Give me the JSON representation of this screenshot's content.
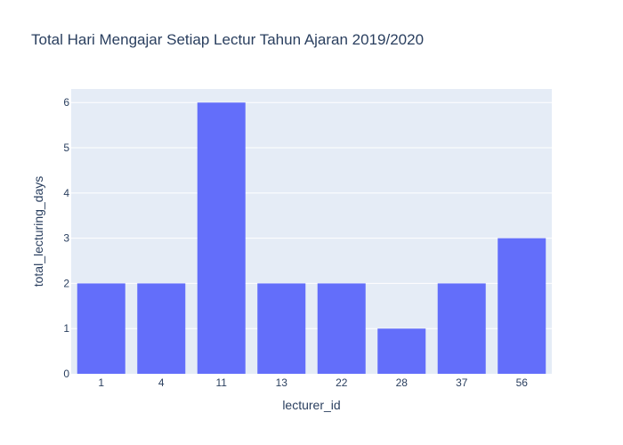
{
  "chart_data": {
    "type": "bar",
    "title": "Total Hari Mengajar Setiap Lectur Tahun Ajaran 2019/2020",
    "xlabel": "lecturer_id",
    "ylabel": "total_lecturing_days",
    "categories": [
      "1",
      "4",
      "11",
      "13",
      "22",
      "28",
      "37",
      "56"
    ],
    "values": [
      2,
      2,
      6,
      2,
      2,
      1,
      2,
      3
    ],
    "ylim": [
      0,
      6.3
    ],
    "yticks": [
      0,
      1,
      2,
      3,
      4,
      5,
      6
    ],
    "grid": true,
    "colors": {
      "bar": "#636efa",
      "plot_bg": "#e5ecf6",
      "grid": "#ffffff",
      "text": "#2a3f5f"
    }
  }
}
